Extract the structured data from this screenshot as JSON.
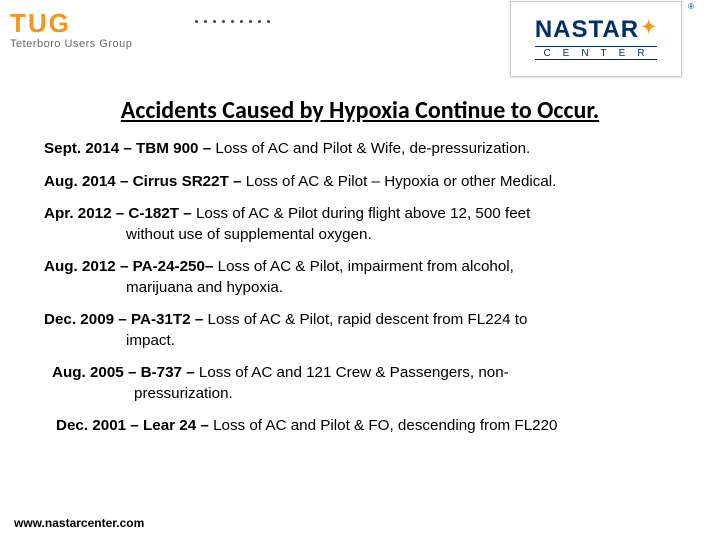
{
  "logos": {
    "left": {
      "main": "TUG",
      "sub": "Teterboro Users Group"
    },
    "right": {
      "top": "NASTAR",
      "bottom": "CENTER",
      "reg": "®"
    }
  },
  "title": "Accidents Caused by Hypoxia Continue to Occur.",
  "entries": [
    {
      "date": "Sept. 2014",
      "ac": "TBM 900",
      "desc": "Loss of AC and Pilot & Wife, de-pressurization.",
      "cont": ""
    },
    {
      "date": "Aug. 2014",
      "ac": "Cirrus SR22T",
      "desc": "Loss of AC & Pilot – Hypoxia or other Medical.",
      "cont": ""
    },
    {
      "date": "Apr. 2012",
      "ac": "C-182T",
      "desc": "Loss of AC & Pilot during flight above 12, 500 feet",
      "cont": "without use of supplemental oxygen."
    },
    {
      "date": "Aug. 2012",
      "ac": "PA-24-250",
      "desc": "Loss of AC & Pilot, impairment from alcohol,",
      "cont": "marijuana and hypoxia.",
      "nodash": true
    },
    {
      "date": "Dec. 2009",
      "ac": "PA-31T2",
      "desc": "Loss of AC & Pilot, rapid descent from FL224 to",
      "cont": "impact."
    },
    {
      "date": "Aug. 2005",
      "ac": "B-737",
      "desc": "Loss of AC and 121 Crew & Passengers, non-",
      "cont": "pressurization.",
      "indent": 8
    },
    {
      "date": "Dec. 2001",
      "ac": "Lear 24",
      "desc": "Loss of AC and Pilot & FO, descending from FL220",
      "cont": "",
      "indent": 12
    }
  ],
  "footer": "www.nastarcenter.com",
  "colors": {
    "orange": "#f7941d",
    "navy": "#002f6c",
    "text": "#000000",
    "gray": "#666666"
  }
}
